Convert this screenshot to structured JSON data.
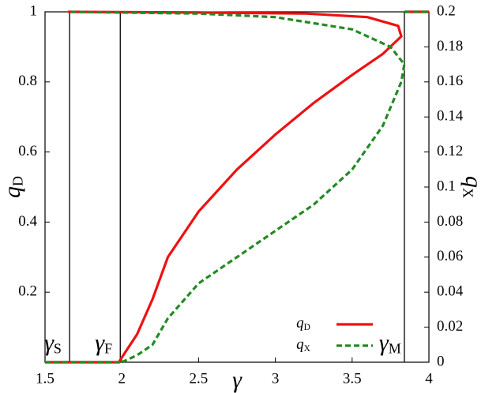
{
  "chart_data": {
    "type": "line",
    "xlabel": "γ",
    "ylabel": "qD",
    "y2label": "qX",
    "xlim": [
      1.5,
      4
    ],
    "ylim": [
      0,
      1
    ],
    "y2lim": [
      0,
      0.2
    ],
    "xticks": [
      1.5,
      2,
      2.5,
      3,
      3.5,
      4
    ],
    "yticks": [
      0.2,
      0.4,
      0.6,
      0.8,
      1
    ],
    "y2ticks": [
      0,
      0.02,
      0.04,
      0.06,
      0.08,
      0.1,
      0.12,
      0.14,
      0.16,
      0.18,
      0.2
    ],
    "legend": "lower right",
    "series": [
      {
        "name": "qD",
        "color": "#ee1111",
        "dash": false,
        "x": [
          1.5,
          1.98,
          null,
          1.98,
          2.1,
          2.2,
          2.3,
          2.5,
          2.75,
          3.0,
          3.25,
          3.5,
          3.7,
          3.82,
          3.8,
          3.6,
          3.2,
          2.5,
          1.65,
          null,
          3.84,
          4
        ],
        "values": [
          0,
          0,
          null,
          0,
          0.08,
          0.18,
          0.3,
          0.43,
          0.55,
          0.65,
          0.74,
          0.82,
          0.88,
          0.93,
          0.96,
          0.985,
          0.995,
          0.998,
          1,
          null,
          1,
          1
        ]
      },
      {
        "name": "qX",
        "color": "#228b22",
        "dash": true,
        "axis": "y2",
        "x": [
          1.5,
          2.0,
          null,
          2.0,
          2.1,
          2.2,
          2.3,
          2.5,
          2.75,
          3.0,
          3.25,
          3.5,
          3.7,
          3.82,
          3.84,
          3.75,
          3.5,
          3.0,
          2.5,
          1.65,
          null,
          3.84,
          4
        ],
        "values": [
          0,
          0,
          null,
          0,
          0.004,
          0.01,
          0.025,
          0.045,
          0.06,
          0.075,
          0.09,
          0.11,
          0.135,
          0.16,
          0.17,
          0.18,
          0.19,
          0.197,
          0.199,
          0.2,
          null,
          0.2,
          0.2
        ]
      }
    ],
    "vlines": [
      {
        "x": 1.66,
        "label": "γS"
      },
      {
        "x": 1.99,
        "label": "γF"
      },
      {
        "x": 3.84,
        "label": "γM"
      }
    ]
  }
}
